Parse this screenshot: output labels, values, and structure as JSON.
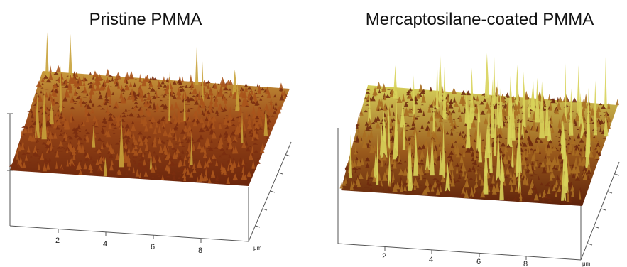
{
  "panels": [
    {
      "title": "Pristine PMMA",
      "x_ticks": [
        "2",
        "4",
        "6",
        "8"
      ],
      "unit": "μm",
      "surface": "low-roughness",
      "colors": {
        "low": "#7a2d10",
        "mid": "#a8541c",
        "high": "#c8a23a"
      }
    },
    {
      "title": "Mercaptosilane-coated PMMA",
      "x_ticks": [
        "2",
        "4",
        "6",
        "8"
      ],
      "unit": "μm",
      "surface": "high-roughness with tall peaks",
      "colors": {
        "low": "#6e2a0e",
        "mid": "#a86e22",
        "high": "#d8d35a"
      }
    }
  ]
}
